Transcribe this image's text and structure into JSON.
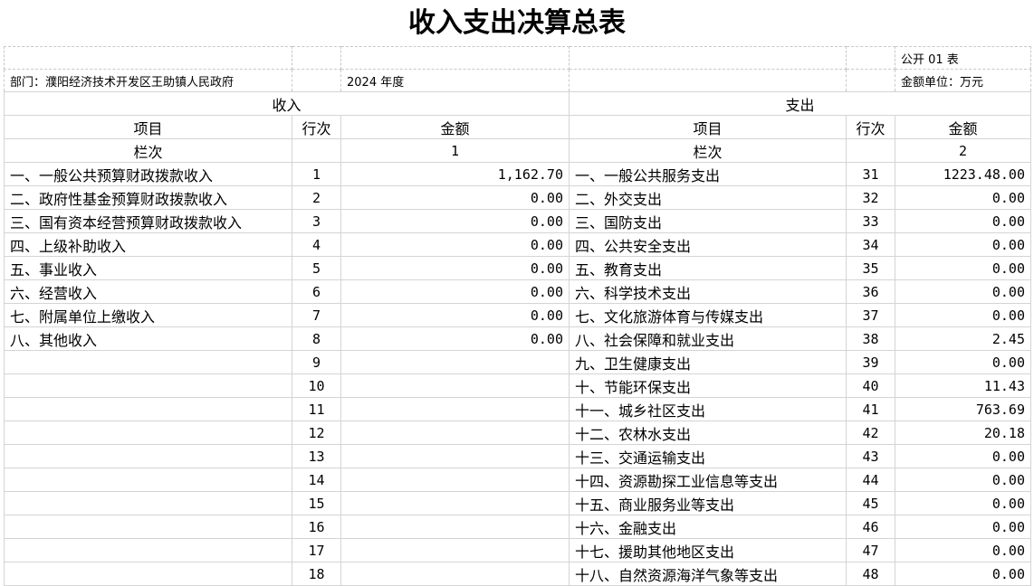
{
  "title": "收入支出决算总表",
  "form_no": "公开 01 表",
  "department": "部门：濮阳经济技术开发区王助镇人民政府",
  "year": "2024 年度",
  "unit": "金额单位：万元",
  "income_header": "收入",
  "expense_header": "支出",
  "col_item": "项目",
  "col_line": "行次",
  "col_amount": "金额",
  "col_index_label": "栏次",
  "income_col_no": "1",
  "expense_col_no": "2",
  "rows": [
    {
      "in_item": "一、一般公共预算财政拨款收入",
      "in_line": "1",
      "in_amt": "1,162.70",
      "ex_item": "一、一般公共服务支出",
      "ex_line": "31",
      "ex_amt": "1223.48.00"
    },
    {
      "in_item": "二、政府性基金预算财政拨款收入",
      "in_line": "2",
      "in_amt": "0.00",
      "ex_item": "二、外交支出",
      "ex_line": "32",
      "ex_amt": "0.00"
    },
    {
      "in_item": "三、国有资本经营预算财政拨款收入",
      "in_line": "3",
      "in_amt": "0.00",
      "ex_item": "三、国防支出",
      "ex_line": "33",
      "ex_amt": "0.00"
    },
    {
      "in_item": "四、上级补助收入",
      "in_line": "4",
      "in_amt": "0.00",
      "ex_item": "四、公共安全支出",
      "ex_line": "34",
      "ex_amt": "0.00"
    },
    {
      "in_item": "五、事业收入",
      "in_line": "5",
      "in_amt": "0.00",
      "ex_item": "五、教育支出",
      "ex_line": "35",
      "ex_amt": "0.00"
    },
    {
      "in_item": "六、经营收入",
      "in_line": "6",
      "in_amt": "0.00",
      "ex_item": "六、科学技术支出",
      "ex_line": "36",
      "ex_amt": "0.00"
    },
    {
      "in_item": "七、附属单位上缴收入",
      "in_line": "7",
      "in_amt": "0.00",
      "ex_item": "七、文化旅游体育与传媒支出",
      "ex_line": "37",
      "ex_amt": "0.00"
    },
    {
      "in_item": "八、其他收入",
      "in_line": "8",
      "in_amt": "0.00",
      "ex_item": "八、社会保障和就业支出",
      "ex_line": "38",
      "ex_amt": "2.45"
    },
    {
      "in_item": "",
      "in_line": "9",
      "in_amt": "",
      "ex_item": "九、卫生健康支出",
      "ex_line": "39",
      "ex_amt": "0.00"
    },
    {
      "in_item": "",
      "in_line": "10",
      "in_amt": "",
      "ex_item": "十、节能环保支出",
      "ex_line": "40",
      "ex_amt": "11.43"
    },
    {
      "in_item": "",
      "in_line": "11",
      "in_amt": "",
      "ex_item": "十一、城乡社区支出",
      "ex_line": "41",
      "ex_amt": "763.69"
    },
    {
      "in_item": "",
      "in_line": "12",
      "in_amt": "",
      "ex_item": "十二、农林水支出",
      "ex_line": "42",
      "ex_amt": "20.18"
    },
    {
      "in_item": "",
      "in_line": "13",
      "in_amt": "",
      "ex_item": "十三、交通运输支出",
      "ex_line": "43",
      "ex_amt": "0.00"
    },
    {
      "in_item": "",
      "in_line": "14",
      "in_amt": "",
      "ex_item": "十四、资源勘探工业信息等支出",
      "ex_line": "44",
      "ex_amt": "0.00"
    },
    {
      "in_item": "",
      "in_line": "15",
      "in_amt": "",
      "ex_item": "十五、商业服务业等支出",
      "ex_line": "45",
      "ex_amt": "0.00"
    },
    {
      "in_item": "",
      "in_line": "16",
      "in_amt": "",
      "ex_item": "十六、金融支出",
      "ex_line": "46",
      "ex_amt": "0.00"
    },
    {
      "in_item": "",
      "in_line": "17",
      "in_amt": "",
      "ex_item": "十七、援助其他地区支出",
      "ex_line": "47",
      "ex_amt": "0.00"
    },
    {
      "in_item": "",
      "in_line": "18",
      "in_amt": "",
      "ex_item": "十八、自然资源海洋气象等支出",
      "ex_line": "48",
      "ex_amt": "0.00"
    }
  ]
}
